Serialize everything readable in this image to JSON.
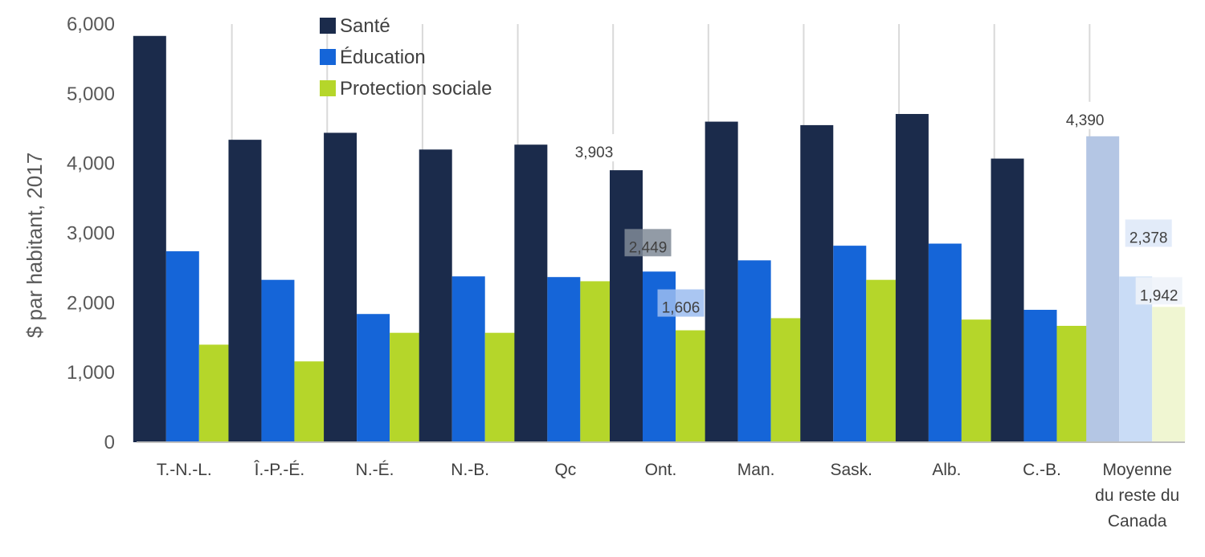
{
  "colors": {
    "sante": "#1b2b4b",
    "education": "#1565d8",
    "protection": "#b5d62a",
    "avg_sante": "#b4c6e4",
    "avg_education": "#c9dcf6",
    "avg_protection": "#f0f6d2",
    "separator": "#d9d9d9",
    "axis": "#bfbfbf"
  },
  "chart_data": {
    "type": "bar",
    "ylabel": "$ par habitant, 2017",
    "ylim": [
      0,
      6000
    ],
    "yticks": [
      0,
      1000,
      2000,
      3000,
      4000,
      5000,
      6000
    ],
    "ytick_labels": [
      "0",
      "1,000",
      "2,000",
      "3,000",
      "4,000",
      "5,000",
      "6,000"
    ],
    "legend_position": "top-center",
    "grid": false,
    "categories": [
      [
        "T.-N.-L."
      ],
      [
        "Î.-P.-É."
      ],
      [
        "N.-É."
      ],
      [
        "N.-B."
      ],
      [
        "Qc"
      ],
      [
        "Ont."
      ],
      [
        "Man."
      ],
      [
        "Sask."
      ],
      [
        "Alb."
      ],
      [
        "C.-B."
      ],
      [
        "Moyenne",
        "du reste du",
        "Canada"
      ]
    ],
    "series": [
      {
        "name": "Santé",
        "values": [
          5830,
          4340,
          4440,
          4200,
          4270,
          3903,
          4600,
          4550,
          4710,
          4070,
          4390
        ]
      },
      {
        "name": "Éducation",
        "values": [
          2740,
          2330,
          1840,
          2380,
          2370,
          2449,
          2610,
          2820,
          2850,
          1900,
          2378
        ]
      },
      {
        "name": "Protection sociale",
        "values": [
          1400,
          1160,
          1570,
          1570,
          2310,
          1606,
          1780,
          2330,
          1760,
          1670,
          1942
        ]
      }
    ],
    "data_labels": [
      {
        "series": 0,
        "category": 5,
        "text": "3,903"
      },
      {
        "series": 1,
        "category": 5,
        "text": "2,449"
      },
      {
        "series": 2,
        "category": 5,
        "text": "1,606"
      },
      {
        "series": 0,
        "category": 10,
        "text": "4,390"
      },
      {
        "series": 1,
        "category": 10,
        "text": "2,378"
      },
      {
        "series": 2,
        "category": 10,
        "text": "1,942"
      }
    ]
  }
}
